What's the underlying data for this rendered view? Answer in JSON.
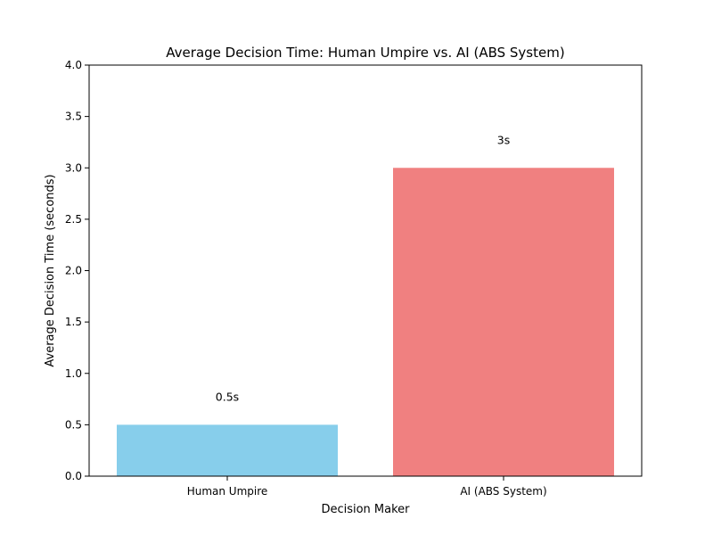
{
  "chart_data": {
    "type": "bar",
    "title": "Average Decision Time: Human Umpire vs. AI (ABS System)",
    "xlabel": "Decision Maker",
    "ylabel": "Average Decision Time (seconds)",
    "categories": [
      "Human Umpire",
      "AI (ABS System)"
    ],
    "values": [
      0.5,
      3
    ],
    "data_labels": [
      "0.5s",
      "3s"
    ],
    "colors": [
      "#87CEEB",
      "#F08080"
    ],
    "ylim": [
      0,
      4.0
    ],
    "yticks": [
      0.0,
      0.5,
      1.0,
      1.5,
      2.0,
      2.5,
      3.0,
      3.5,
      4.0
    ],
    "ytick_labels": [
      "0.0",
      "0.5",
      "1.0",
      "1.5",
      "2.0",
      "2.5",
      "3.0",
      "3.5",
      "4.0"
    ],
    "grid": false,
    "legend": "none"
  }
}
